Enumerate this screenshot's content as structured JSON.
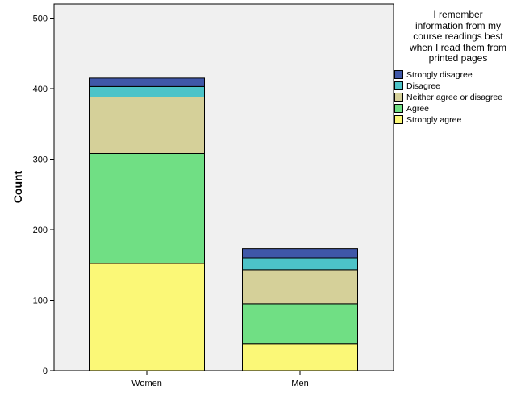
{
  "chart_data": {
    "type": "bar",
    "stacked": true,
    "categories": [
      "Women",
      "Men"
    ],
    "ylabel": "Count",
    "xlabel": "",
    "ylim": [
      0,
      520
    ],
    "yticks": [
      0,
      100,
      200,
      300,
      400,
      500
    ],
    "grid": false,
    "legend": {
      "title": "I remember information from my course readings best when I read them from printed pages",
      "placement": "right"
    },
    "series": [
      {
        "name": "Strongly agree",
        "color": "#fbf877",
        "values": [
          152,
          38
        ]
      },
      {
        "name": "Agree",
        "color": "#70df84",
        "values": [
          156,
          57
        ]
      },
      {
        "name": "Neither agree or disagree",
        "color": "#d5d099",
        "values": [
          80,
          48
        ]
      },
      {
        "name": "Disagree",
        "color": "#4cc3c8",
        "values": [
          15,
          17
        ]
      },
      {
        "name": "Strongly disagree",
        "color": "#3f57a8",
        "values": [
          12,
          13
        ]
      }
    ]
  },
  "legend_title_lines": [
    "I remember",
    "information from my",
    "course readings best",
    "when I read them from",
    "printed pages"
  ]
}
